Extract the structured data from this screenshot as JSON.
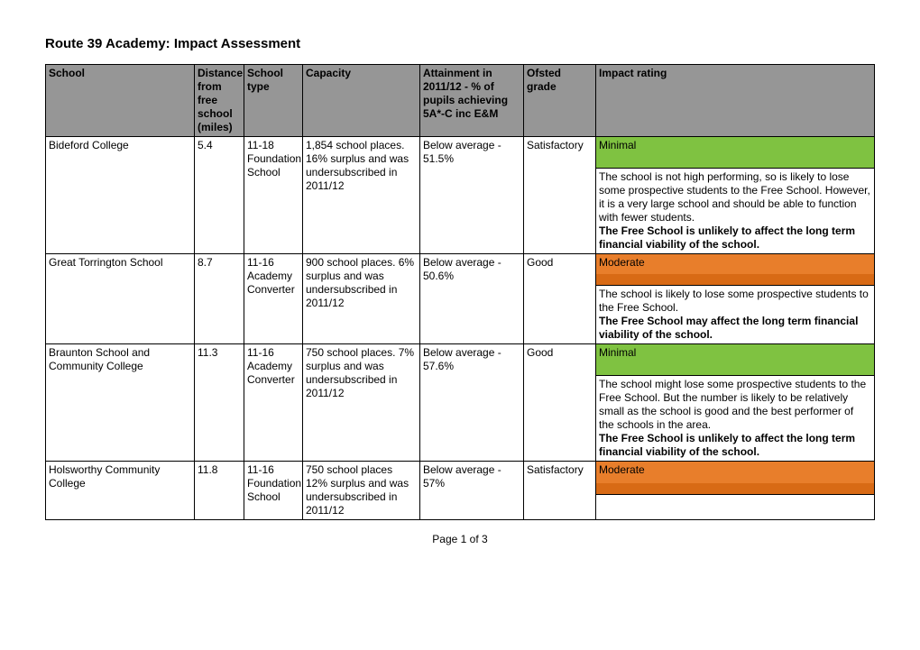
{
  "title": "Route 39 Academy: Impact Assessment",
  "page_label": "Page 1 of 3",
  "colors": {
    "header_bg": "#969696",
    "minimal_bg": "#7fc241",
    "moderate_bg": "#e87e2b",
    "moderate_border": "#d86a15"
  },
  "columns": {
    "school": "School",
    "distance": "Distance from free school (miles)",
    "type": "School type",
    "capacity": "Capacity",
    "attainment": "Attainment in 2011/12 - % of pupils achieving 5A*-C inc E&M",
    "ofsted": "Ofsted grade",
    "impact": "Impact rating"
  },
  "rows": [
    {
      "school": "Bideford College",
      "distance": "5.4",
      "type": "11-18 Foundation School",
      "capacity": "1,854 school places. 16% surplus and was undersubscribed in 2011/12",
      "attainment": "Below average - 51.5%",
      "ofsted": "Satisfactory",
      "rating_label": "Minimal",
      "rating_color": "#7fc241",
      "desc_plain": "The school is not high performing, so is likely to lose some prospective students to the Free School. However, it is a very large school and should be able to function with fewer students.",
      "desc_bold": "The Free School is unlikely to affect the long term financial viability of the school."
    },
    {
      "school": "Great Torrington School",
      "distance": "8.7",
      "type": "11-16 Academy Converter",
      "capacity": "900 school places. 6% surplus and was undersubscribed in 2011/12",
      "attainment": "Below average - 50.6%",
      "ofsted": "Good",
      "rating_label": "Moderate",
      "rating_color": "#e87e2b",
      "desc_plain": "The school is likely to lose some prospective students to the Free School.",
      "desc_bold": "The Free School may affect the long term financial viability of the school."
    },
    {
      "school": "Braunton School and Community College",
      "distance": "11.3",
      "type": "11-16 Academy Converter",
      "capacity": "750 school places. 7% surplus and was undersubscribed in 2011/12",
      "attainment": "Below average - 57.6%",
      "ofsted": "Good",
      "rating_label": "Minimal",
      "rating_color": "#7fc241",
      "desc_plain": "The school might lose some prospective students to the Free School. But the number is likely to be relatively small as the school is good and the best performer of the schools in the area.",
      "desc_bold": "The Free School is unlikely to affect the long term financial viability of the school."
    },
    {
      "school": "Holsworthy Community College",
      "distance": "11.8",
      "type": "11-16 Foundation School",
      "capacity": "750 school places 12% surplus and was undersubscribed in 2011/12",
      "attainment": "Below average - 57%",
      "ofsted": "Satisfactory",
      "rating_label": "Moderate",
      "rating_color": "#e87e2b",
      "desc_plain": "",
      "desc_bold": ""
    }
  ]
}
